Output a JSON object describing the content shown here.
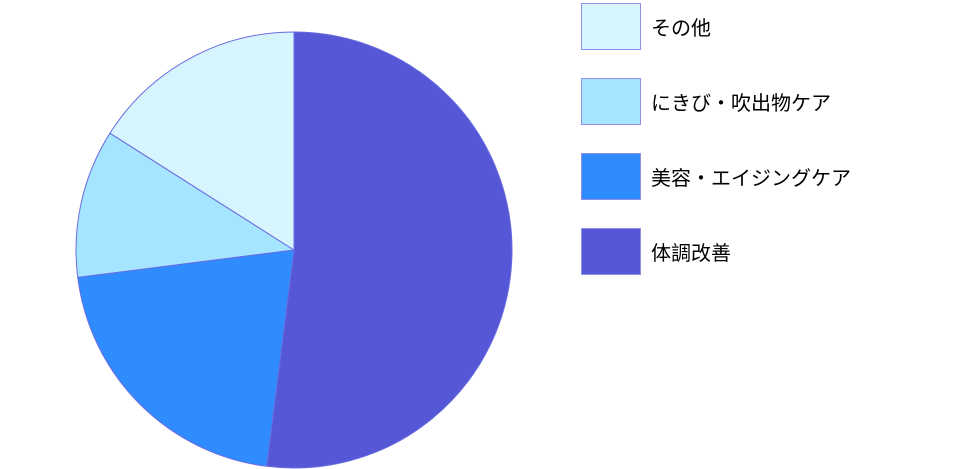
{
  "chart_data": {
    "type": "pie",
    "start_angle": "top",
    "direction": "clockwise",
    "slices": [
      {
        "name": "体調改善",
        "value": 52,
        "color": "#5557d6"
      },
      {
        "name": "美容・エイジングケア",
        "value": 21,
        "color": "#2e8cff"
      },
      {
        "name": "にきび・吹出物ケア",
        "value": 11,
        "color": "#a6e5ff"
      },
      {
        "name": "その他",
        "value": 16,
        "color": "#d7f5ff"
      }
    ],
    "legend": {
      "position": "right",
      "entries": [
        "その他",
        "にきび・吹出物ケア",
        "美容・エイジングケア",
        "体調改善"
      ]
    },
    "slice_border_color": "#6a6ce0"
  }
}
